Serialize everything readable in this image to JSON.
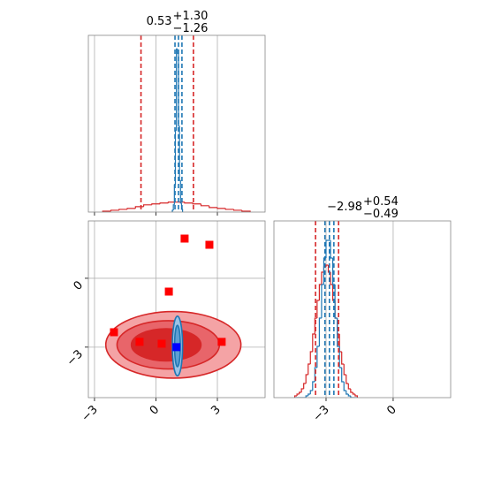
{
  "chart_data": [
    {
      "type": "histogram",
      "title": {
        "main": "0.53",
        "upper": "+1.30",
        "lower": "−1.26"
      },
      "xlim": [
        -3.3,
        5.33
      ],
      "xticks": [
        -3,
        0,
        3
      ],
      "xtick_labels": false,
      "ylim": [
        0,
        195
      ],
      "grid": true,
      "series": [
        {
          "color": "#d62728",
          "bins": [
            -2.6,
            -2.2,
            -1.8,
            -1.4,
            -1.0,
            -0.6,
            -0.2,
            0.2,
            0.6,
            1.0,
            1.4,
            1.8,
            2.2,
            2.6,
            3.0,
            3.4,
            3.8,
            4.2,
            4.6
          ],
          "counts": [
            1,
            2,
            3,
            4,
            6,
            8,
            9,
            10,
            11,
            11,
            10,
            9,
            7,
            5,
            4,
            3,
            2,
            1
          ]
        },
        {
          "color": "#1f77b4",
          "bins": [
            0.8,
            0.85,
            0.9,
            0.95,
            1.0,
            1.05,
            1.1,
            1.15,
            1.2,
            1.25,
            1.3
          ],
          "counts": [
            2,
            8,
            30,
            90,
            180,
            175,
            95,
            35,
            10,
            3
          ]
        }
      ],
      "quantiles": [
        {
          "color": "#d62728",
          "values": [
            -0.73,
            1.83
          ]
        },
        {
          "color": "#1f77b4",
          "values": [
            0.93,
            1.1,
            1.27
          ]
        }
      ]
    },
    {
      "type": "contour",
      "xlim": [
        -3.3,
        5.33
      ],
      "xticks": [
        {
          "value": -3,
          "label": "−3"
        },
        0,
        3
      ],
      "ylim": [
        -5.2,
        2.5
      ],
      "yticks": [
        {
          "value": -3,
          "label": "−3"
        },
        0
      ],
      "grid": true,
      "contours": [
        {
          "color": "#d62728",
          "fill": "#f4a3a5",
          "cx": 0.85,
          "cy": -2.9,
          "rx": 3.3,
          "ry": 1.45
        },
        {
          "color": "#d62728",
          "fill": "#e8656a",
          "cx": 0.6,
          "cy": -2.9,
          "rx": 2.5,
          "ry": 1.05
        },
        {
          "color": "#d62728",
          "fill": "#d62728",
          "cx": 0.5,
          "cy": -2.9,
          "rx": 1.7,
          "ry": 0.7
        },
        {
          "color": "#1f77b4",
          "fill": "#9cc3e6",
          "cx": 1.05,
          "cy": -2.95,
          "rx": 0.25,
          "ry": 1.3
        },
        {
          "color": "#1f77b4",
          "fill": "#5d9fd3",
          "cx": 1.05,
          "cy": -2.95,
          "rx": 0.14,
          "ry": 0.9
        }
      ],
      "markers": [
        {
          "color": "#ff0000",
          "x": [
            1.4,
            2.61,
            0.63,
            -2.05,
            -0.8,
            0.28,
            3.21
          ],
          "y": [
            1.73,
            1.46,
            -0.58,
            -2.35,
            -2.77,
            -2.85,
            -2.77
          ]
        },
        {
          "color": "#0000ff",
          "x": [
            1.0
          ],
          "y": [
            -3.0
          ]
        }
      ]
    },
    {
      "type": "histogram",
      "title": {
        "main": "−2.98",
        "upper": "+0.54",
        "lower": "−0.49"
      },
      "xlim": [
        -5.33,
        2.57
      ],
      "xticks": [
        {
          "value": -3,
          "label": "−3"
        },
        0
      ],
      "xtick_labels": true,
      "ylim": [
        0,
        100
      ],
      "grid": true,
      "series": [
        {
          "color": "#d62728",
          "bins": [
            -4.4,
            -4.3,
            -4.2,
            -4.1,
            -4.0,
            -3.9,
            -3.8,
            -3.7,
            -3.6,
            -3.5,
            -3.4,
            -3.3,
            -3.2,
            -3.1,
            -3.0,
            -2.9,
            -2.8,
            -2.7,
            -2.6,
            -2.5,
            -2.4,
            -2.3,
            -2.2,
            -2.1,
            -2.0,
            -1.9,
            -1.8,
            -1.7,
            -1.6
          ],
          "counts": [
            1,
            2,
            3,
            5,
            8,
            13,
            19,
            26,
            36,
            45,
            55,
            64,
            71,
            74,
            75,
            71,
            64,
            55,
            45,
            36,
            26,
            19,
            13,
            8,
            5,
            3,
            2,
            1
          ]
        },
        {
          "color": "#1f77b4",
          "bins": [
            -4.4,
            -4.3,
            -4.2,
            -4.1,
            -4.0,
            -3.9,
            -3.8,
            -3.7,
            -3.6,
            -3.5,
            -3.4,
            -3.3,
            -3.2,
            -3.1,
            -3.0,
            -2.9,
            -2.8,
            -2.7,
            -2.6,
            -2.5,
            -2.4,
            -2.3,
            -2.2,
            -2.1,
            -2.0,
            -1.9,
            -1.8,
            -1.7,
            -1.6
          ],
          "counts": [
            0,
            0,
            0,
            0,
            0,
            1,
            2,
            4,
            9,
            17,
            29,
            45,
            64,
            79,
            89,
            89,
            79,
            64,
            45,
            29,
            17,
            9,
            4,
            2,
            1,
            0,
            0,
            0
          ]
        }
      ],
      "quantiles": [
        {
          "color": "#d62728",
          "values": [
            -3.47,
            -2.44
          ]
        },
        {
          "color": "#1f77b4",
          "values": [
            -3.05,
            -2.85,
            -2.65
          ]
        }
      ]
    }
  ]
}
